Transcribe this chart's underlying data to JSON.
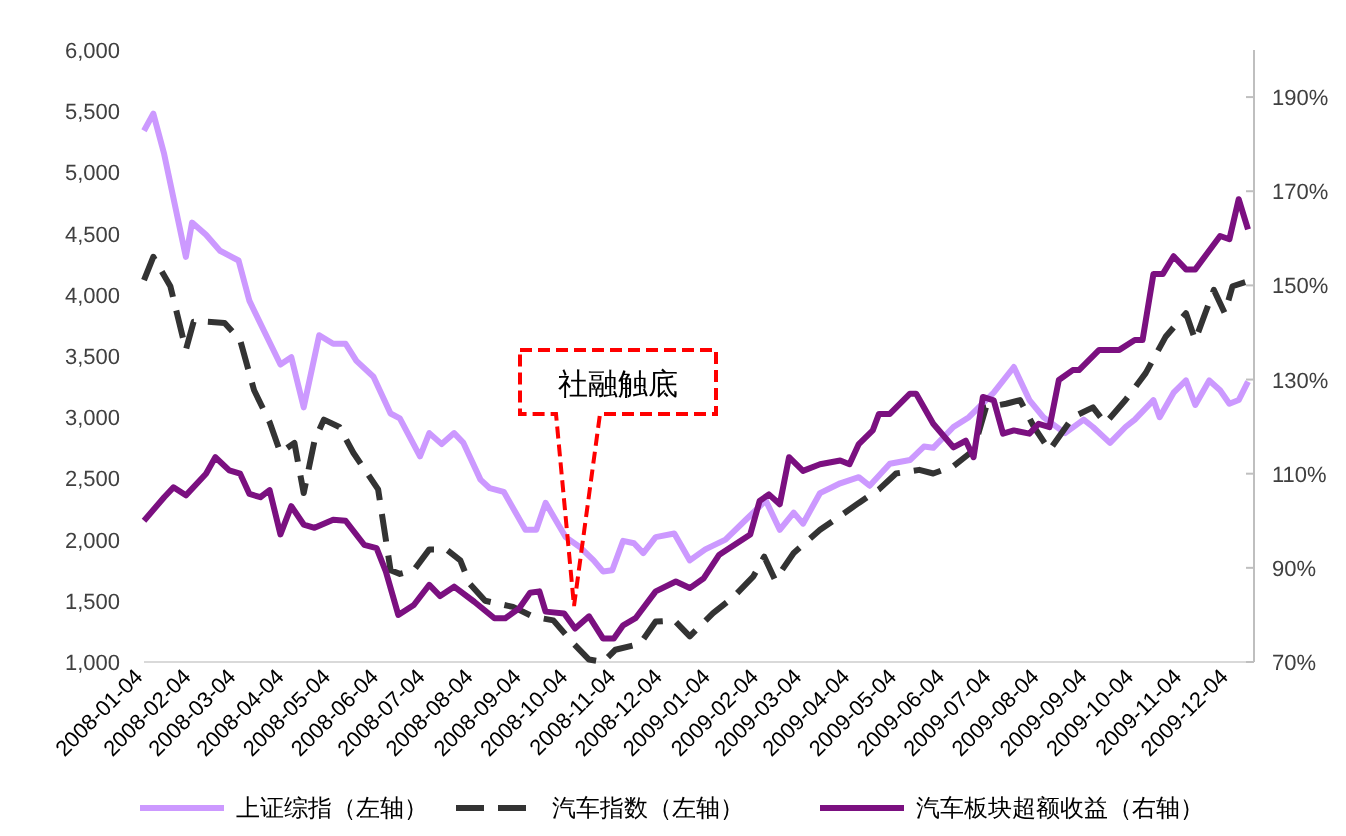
{
  "chart_data": {
    "type": "line",
    "legend": "bottom",
    "xlim": [
      "2008-01-04",
      "2009-12-16"
    ],
    "xticks": [
      "2008-01-04",
      "2008-02-04",
      "2008-03-04",
      "2008-04-04",
      "2008-05-04",
      "2008-06-04",
      "2008-07-04",
      "2008-08-04",
      "2008-09-04",
      "2008-10-04",
      "2008-11-04",
      "2008-12-04",
      "2009-01-04",
      "2009-02-04",
      "2009-03-04",
      "2009-04-04",
      "2009-05-04",
      "2009-06-04",
      "2009-07-04",
      "2009-08-04",
      "2009-09-04",
      "2009-10-04",
      "2009-11-04",
      "2009-12-04"
    ],
    "ylim": [
      1000,
      6000
    ],
    "yticks": [
      {
        "value": 1000,
        "label": "1,000"
      },
      {
        "value": 1500,
        "label": "1,500"
      },
      {
        "value": 2000,
        "label": "2,000"
      },
      {
        "value": 2500,
        "label": "2,500"
      },
      {
        "value": 3000,
        "label": "3,000"
      },
      {
        "value": 3500,
        "label": "3,500"
      },
      {
        "value": 4000,
        "label": "4,000"
      },
      {
        "value": 4500,
        "label": "4,500"
      },
      {
        "value": 5000,
        "label": "5,000"
      },
      {
        "value": 5500,
        "label": "5,500"
      },
      {
        "value": 6000,
        "label": "6,000"
      }
    ],
    "y2lim": [
      70,
      200
    ],
    "y2ticks": [
      {
        "value": 70,
        "label": "70%"
      },
      {
        "value": 90,
        "label": "90%"
      },
      {
        "value": 110,
        "label": "110%"
      },
      {
        "value": 130,
        "label": "130%"
      },
      {
        "value": 150,
        "label": "150%"
      },
      {
        "value": 170,
        "label": "170%"
      },
      {
        "value": 190,
        "label": "190%"
      }
    ],
    "annotations": [
      "社融触底"
    ],
    "series": [
      {
        "name": "上证综指（左轴）",
        "color": "#cc99ff",
        "line_style": "solid",
        "x": [
          "2008-01-04",
          "2008-01-10",
          "2008-01-17",
          "2008-01-31",
          "2008-02-04",
          "2008-02-13",
          "2008-02-22",
          "2008-03-05",
          "2008-03-12",
          "2008-04-01",
          "2008-04-08",
          "2008-04-16",
          "2008-04-26",
          "2008-05-05",
          "2008-05-13",
          "2008-05-20",
          "2008-05-31",
          "2008-06-11",
          "2008-06-17",
          "2008-06-30",
          "2008-07-06",
          "2008-07-14",
          "2008-07-22",
          "2008-07-28",
          "2008-08-08",
          "2008-08-14",
          "2008-08-23",
          "2008-09-06",
          "2008-09-13",
          "2008-09-19",
          "2008-10-02",
          "2008-10-11",
          "2008-10-20",
          "2008-10-26",
          "2008-11-01",
          "2008-11-08",
          "2008-11-15",
          "2008-11-21",
          "2008-11-29",
          "2008-12-11",
          "2008-12-21",
          "2008-12-31",
          "2009-01-13",
          "2009-01-26",
          "2009-02-08",
          "2009-02-17",
          "2009-02-26",
          "2009-03-04",
          "2009-03-15",
          "2009-03-28",
          "2009-04-09",
          "2009-04-16",
          "2009-04-29",
          "2009-05-12",
          "2009-05-21",
          "2009-05-27",
          "2009-06-09",
          "2009-06-19",
          "2009-07-05",
          "2009-07-18",
          "2009-07-28",
          "2009-08-06",
          "2009-08-20",
          "2009-09-01",
          "2009-09-07",
          "2009-09-18",
          "2009-09-28",
          "2009-10-04",
          "2009-10-16",
          "2009-10-20",
          "2009-10-29",
          "2009-11-06",
          "2009-11-12",
          "2009-11-21",
          "2009-11-28",
          "2009-12-04",
          "2009-12-10",
          "2009-12-16"
        ],
        "values": [
          5340,
          5480,
          5150,
          4310,
          4590,
          4490,
          4360,
          4280,
          3950,
          3430,
          3490,
          3080,
          3670,
          3600,
          3600,
          3460,
          3330,
          3030,
          2990,
          2680,
          2870,
          2780,
          2870,
          2790,
          2490,
          2420,
          2390,
          2080,
          2080,
          2300,
          2020,
          1940,
          1830,
          1740,
          1750,
          1990,
          1970,
          1890,
          2020,
          2050,
          1830,
          1920,
          2000,
          2160,
          2320,
          2080,
          2220,
          2130,
          2380,
          2460,
          2510,
          2440,
          2620,
          2650,
          2760,
          2750,
          2920,
          3000,
          3200,
          3410,
          3140,
          3000,
          2870,
          2980,
          2920,
          2790,
          2920,
          2980,
          3140,
          3000,
          3200,
          3300,
          3100,
          3300,
          3220,
          3110,
          3140,
          3290
        ]
      },
      {
        "name": "汽车指数（左轴）",
        "color": "#333333",
        "line_style": "dashed",
        "x": [
          "2008-01-04",
          "2008-01-10",
          "2008-01-21",
          "2008-01-31",
          "2008-02-05",
          "2008-02-13",
          "2008-02-25",
          "2008-03-06",
          "2008-03-15",
          "2008-03-25",
          "2008-04-01",
          "2008-04-10",
          "2008-04-16",
          "2008-04-23",
          "2008-04-29",
          "2008-05-09",
          "2008-05-18",
          "2008-06-03",
          "2008-06-11",
          "2008-06-17",
          "2008-06-26",
          "2008-07-06",
          "2008-07-17",
          "2008-07-26",
          "2008-08-01",
          "2008-08-11",
          "2008-08-29",
          "2008-09-11",
          "2008-09-24",
          "2008-10-07",
          "2008-10-17",
          "2008-10-26",
          "2008-11-03",
          "2008-11-19",
          "2008-11-29",
          "2008-12-11",
          "2008-12-21",
          "2009-01-05",
          "2009-01-18",
          "2009-01-31",
          "2009-02-07",
          "2009-02-14",
          "2009-02-26",
          "2009-03-15",
          "2009-03-31",
          "2009-04-09",
          "2009-04-22",
          "2009-05-03",
          "2009-05-18",
          "2009-05-27",
          "2009-06-09",
          "2009-06-22",
          "2009-06-30",
          "2009-07-13",
          "2009-07-22",
          "2009-07-31",
          "2009-08-10",
          "2009-08-25",
          "2009-09-07",
          "2009-09-15",
          "2009-09-28",
          "2009-10-11",
          "2009-10-24",
          "2009-11-06",
          "2009-11-12",
          "2009-11-24",
          "2009-12-01",
          "2009-12-06",
          "2009-12-16"
        ],
        "values": [
          4120,
          4310,
          4070,
          3550,
          3780,
          3780,
          3770,
          3630,
          3220,
          2960,
          2710,
          2790,
          2380,
          2810,
          2980,
          2920,
          2710,
          2410,
          1750,
          1720,
          1750,
          1920,
          1920,
          1830,
          1640,
          1500,
          1450,
          1370,
          1340,
          1150,
          1020,
          1000,
          1100,
          1150,
          1330,
          1340,
          1210,
          1400,
          1530,
          1700,
          1860,
          1670,
          1890,
          2080,
          2220,
          2300,
          2410,
          2540,
          2570,
          2540,
          2600,
          2730,
          3080,
          3110,
          3140,
          2920,
          2730,
          3000,
          3080,
          2950,
          3140,
          3360,
          3660,
          3850,
          3630,
          4040,
          3850,
          4070,
          4110
        ]
      },
      {
        "name": "汽车板块超额收益（右轴）",
        "color": "#7b1080",
        "line_style": "solid",
        "axis": "y2",
        "x": [
          "2008-01-04",
          "2008-01-17",
          "2008-01-23",
          "2008-01-31",
          "2008-02-13",
          "2008-02-19",
          "2008-02-28",
          "2008-03-06",
          "2008-03-12",
          "2008-03-19",
          "2008-03-25",
          "2008-04-01",
          "2008-04-08",
          "2008-04-16",
          "2008-04-23",
          "2008-05-05",
          "2008-05-13",
          "2008-05-25",
          "2008-06-02",
          "2008-06-08",
          "2008-06-16",
          "2008-06-26",
          "2008-07-06",
          "2008-07-13",
          "2008-07-22",
          "2008-08-04",
          "2008-08-17",
          "2008-08-24",
          "2008-09-02",
          "2008-09-09",
          "2008-09-15",
          "2008-09-19",
          "2008-10-01",
          "2008-10-08",
          "2008-10-17",
          "2008-10-26",
          "2008-11-02",
          "2008-11-08",
          "2008-11-16",
          "2008-11-29",
          "2008-12-12",
          "2008-12-21",
          "2008-12-30",
          "2009-01-09",
          "2009-01-29",
          "2009-02-04",
          "2009-02-10",
          "2009-02-17",
          "2009-02-23",
          "2009-03-04",
          "2009-03-15",
          "2009-03-28",
          "2009-04-03",
          "2009-04-09",
          "2009-04-18",
          "2009-04-22",
          "2009-04-29",
          "2009-05-12",
          "2009-05-16",
          "2009-05-27",
          "2009-06-09",
          "2009-06-17",
          "2009-06-22",
          "2009-06-28",
          "2009-07-05",
          "2009-07-11",
          "2009-07-18",
          "2009-07-28",
          "2009-08-03",
          "2009-08-10",
          "2009-08-16",
          "2009-08-25",
          "2009-08-29",
          "2009-09-11",
          "2009-09-24",
          "2009-10-04",
          "2009-10-09",
          "2009-10-16",
          "2009-10-22",
          "2009-10-29",
          "2009-11-06",
          "2009-11-12",
          "2009-11-28",
          "2009-12-04",
          "2009-12-10",
          "2009-12-16"
        ],
        "values": [
          100.0,
          105.0,
          107.1,
          105.4,
          110.0,
          113.5,
          110.7,
          110.0,
          105.7,
          105.0,
          106.5,
          97.1,
          103.1,
          99.2,
          98.5,
          100.2,
          100.0,
          94.9,
          94.2,
          89.2,
          80.0,
          82.1,
          86.4,
          84.0,
          86.0,
          82.8,
          79.3,
          79.3,
          81.4,
          84.7,
          85.0,
          80.7,
          80.3,
          77.1,
          79.7,
          75.0,
          75.0,
          77.8,
          79.3,
          85.0,
          87.1,
          85.7,
          87.8,
          92.8,
          97.1,
          104.2,
          105.6,
          103.5,
          113.5,
          110.6,
          112.0,
          112.8,
          112.0,
          116.3,
          119.2,
          122.7,
          122.7,
          127.0,
          127.0,
          120.6,
          115.6,
          117.0,
          113.5,
          126.3,
          125.6,
          118.5,
          119.2,
          118.5,
          120.6,
          119.9,
          129.9,
          132.0,
          132.0,
          136.3,
          136.3,
          138.4,
          138.4,
          152.4,
          152.4,
          156.2,
          153.4,
          153.4,
          160.5,
          159.8,
          168.3,
          161.9
        ]
      }
    ]
  }
}
